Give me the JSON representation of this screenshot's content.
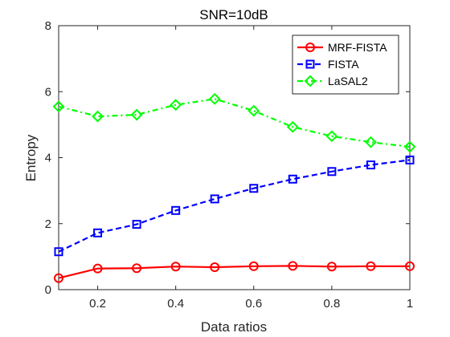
{
  "chart_data": {
    "type": "line",
    "title": "SNR=10dB",
    "xlabel": "Data ratios",
    "ylabel": "Entropy",
    "xlim": [
      0.1,
      1.0
    ],
    "ylim": [
      0,
      8
    ],
    "xticks": [
      0.2,
      0.4,
      0.6,
      0.8,
      1.0
    ],
    "xtick_labels": [
      "0.2",
      "0.4",
      "0.6",
      "0.8",
      "1"
    ],
    "yticks": [
      0,
      2,
      4,
      6,
      8
    ],
    "ytick_labels": [
      "0",
      "2",
      "4",
      "6",
      "8"
    ],
    "grid": false,
    "legend_position": "top-right",
    "x": [
      0.1,
      0.2,
      0.3,
      0.4,
      0.5,
      0.6,
      0.7,
      0.8,
      0.9,
      1.0
    ],
    "series": [
      {
        "name": "MRF-FISTA",
        "color": "#ff0000",
        "line_style": "solid",
        "marker": "circle",
        "values": [
          0.35,
          0.64,
          0.65,
          0.7,
          0.68,
          0.71,
          0.72,
          0.7,
          0.71,
          0.71
        ]
      },
      {
        "name": "FISTA",
        "color": "#0000ff",
        "line_style": "dashed",
        "marker": "square",
        "values": [
          1.15,
          1.72,
          1.98,
          2.4,
          2.75,
          3.07,
          3.35,
          3.58,
          3.78,
          3.93
        ]
      },
      {
        "name": "LaSAL2",
        "color": "#00ff00",
        "line_style": "dashdot",
        "marker": "diamond",
        "values": [
          5.55,
          5.25,
          5.3,
          5.6,
          5.78,
          5.42,
          4.93,
          4.65,
          4.47,
          4.33
        ]
      }
    ]
  }
}
